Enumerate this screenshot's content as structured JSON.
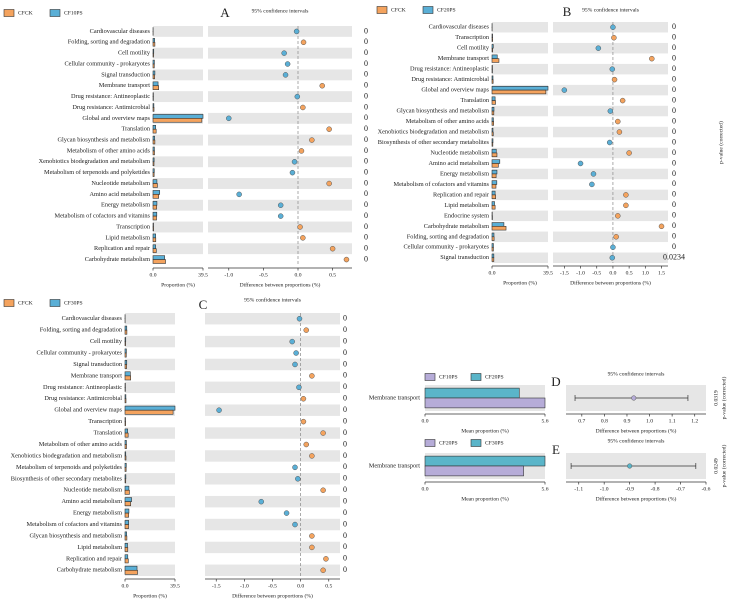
{
  "chart_data": [
    {
      "type": "extended_error_bar",
      "panel": "A",
      "ci_title": "95% confidence intervals",
      "categories": [
        "Cardiovascular diseases",
        "Folding, sorting and degradation",
        "Cell motility",
        "Cellular community - prokaryotes",
        "Signal transduction",
        "Membrane transport",
        "Drug resistance: Antineoplastic",
        "Drug resistance: Antimicrobial",
        "Global and overview maps",
        "Translation",
        "Glycan biosynthesis and metabolism",
        "Metabolism of other amino acids",
        "Xenobiotics biodegradation and metabolism",
        "Metabolism of terpenoids and polyketides",
        "Nucleotide metabolism",
        "Amino acid metabolism",
        "Energy metabolism",
        "Metabolism of cofactors and vitamins",
        "Transcription",
        "Lipid metabolism",
        "Replication and repair",
        "Carbohydrate metabolism"
      ],
      "series": [
        {
          "name": "CFCK",
          "color": "#f4a35e",
          "values": [
            0.1,
            1.5,
            0.5,
            1.0,
            1.3,
            4.5,
            0.3,
            0.8,
            38.6,
            2.5,
            1.5,
            1.2,
            0.8,
            0.9,
            3.5,
            4.5,
            2.9,
            2.8,
            0.5,
            2.2,
            2.6,
            9.9
          ]
        },
        {
          "name": "CF10PS",
          "color": "#5aafd6",
          "values": [
            0.1,
            1.3,
            0.6,
            1.1,
            1.5,
            4.0,
            0.3,
            0.7,
            39.5,
            2.1,
            1.3,
            1.1,
            0.9,
            1.0,
            3.1,
            5.3,
            3.1,
            3.0,
            0.4,
            2.1,
            2.1,
            9.2
          ]
        }
      ],
      "differences": [
        -0.02,
        0.08,
        -0.2,
        -0.15,
        -0.18,
        0.35,
        -0.01,
        0.07,
        -1.0,
        0.45,
        0.2,
        0.05,
        -0.05,
        -0.08,
        0.45,
        -0.85,
        -0.25,
        -0.25,
        0.03,
        0.07,
        0.5,
        0.7
      ],
      "p_values": [
        0,
        0,
        0,
        0,
        0,
        0,
        0,
        0,
        0,
        0,
        0,
        0,
        0,
        0,
        0,
        0,
        0,
        0,
        0,
        0,
        0,
        0
      ],
      "xlim": [
        0,
        39.5
      ],
      "xticks": [
        {
          "value": 0,
          "label": "0.0"
        },
        39.5
      ],
      "xlabel": "Proportion (%)",
      "diff_xlim": [
        -1.3,
        0.78
      ],
      "diff_xticks": [
        {
          "value": -1,
          "label": "-1.0"
        },
        -0.5,
        {
          "value": 0,
          "label": "0.0"
        },
        0.5
      ],
      "diff_xlabel": "Difference between proportions (%)"
    },
    {
      "type": "extended_error_bar",
      "panel": "B",
      "ci_title": "95% confidence intervals",
      "categories": [
        "Cardiovascular diseases",
        "Transcription",
        "Cell motility",
        "Membrane transport",
        "Drug resistance: Antineoplastic",
        "Drug resistance: Antimicrobial",
        "Global and overview maps",
        "Translation",
        "Glycan biosynthesis and metabolism",
        "Metabolism of other amino acids",
        "Xenobiotics biodegradation and metabolism",
        "Biosynthesis of other secondary metabolites",
        "Nucleotide metabolism",
        "Amino acid metabolism",
        "Energy metabolism",
        "Metabolism of cofactors and vitamins",
        "Replication and repair",
        "Lipid metabolism",
        "Endocrine system",
        "Carbohydrate metabolism",
        "Folding, sorting and degradation",
        "Cellular community - prokaryotes",
        "Signal transduction"
      ],
      "series": [
        {
          "name": "CFCK",
          "color": "#f4a35e",
          "values": [
            0.1,
            0.5,
            0.5,
            4.9,
            0.3,
            0.8,
            38.0,
            2.5,
            1.3,
            1.2,
            0.9,
            0.6,
            3.5,
            4.5,
            2.9,
            2.8,
            2.6,
            2.2,
            0.3,
            9.9,
            1.5,
            1.0,
            1.3
          ]
        },
        {
          "name": "CF20PS",
          "color": "#5aafd6",
          "values": [
            0.1,
            0.4,
            0.9,
            3.7,
            0.3,
            0.7,
            39.5,
            2.2,
            1.4,
            1.0,
            0.7,
            0.7,
            3.0,
            5.5,
            3.5,
            3.4,
            2.2,
            1.8,
            0.2,
            8.4,
            1.4,
            1.0,
            1.3
          ]
        }
      ],
      "differences": [
        0.0,
        0.03,
        -0.45,
        1.2,
        -0.02,
        0.05,
        -1.5,
        0.3,
        -0.08,
        0.15,
        0.2,
        -0.1,
        0.5,
        -1.0,
        -0.6,
        -0.65,
        0.4,
        0.4,
        0.15,
        1.5,
        0.1,
        0.0,
        -0.02
      ],
      "p_values": [
        0,
        0,
        0,
        0,
        0,
        0,
        0,
        0,
        0,
        0,
        0,
        0,
        0,
        0,
        0,
        0,
        0,
        0,
        0,
        0,
        0,
        0,
        0.0234
      ],
      "xlim": [
        0,
        39.5
      ],
      "xticks": [
        {
          "value": 0,
          "label": "0.0"
        },
        39.5
      ],
      "xlabel": "Proportion (%)",
      "diff_xlim": [
        -1.85,
        1.7
      ],
      "diff_xticks": [
        -1.5,
        {
          "value": -1,
          "label": "-1.0"
        },
        -0.5,
        {
          "value": 0,
          "label": "0.0"
        },
        0.5,
        {
          "value": 1,
          "label": "1.0"
        },
        1.5
      ],
      "diff_xlabel": "Difference between proportions (%)",
      "p_label": "p-value (corrected)"
    },
    {
      "type": "extended_error_bar",
      "panel": "C",
      "ci_title": "95% confidence intervals",
      "categories": [
        "Cardiovascular diseases",
        "Folding, sorting and degradation",
        "Cell motility",
        "Cellular community - prokaryotes",
        "Signal transduction",
        "Membrane transport",
        "Drug resistance: Antineoplastic",
        "Drug resistance: Antimicrobial",
        "Global and overview maps",
        "Transcription",
        "Translation",
        "Metabolism of other amino acids",
        "Xenobiotics biodegradation and metabolism",
        "Metabolism of terpenoids and polyketides",
        "Biosynthesis of other secondary metabolites",
        "Nucleotide metabolism",
        "Amino acid metabolism",
        "Energy metabolism",
        "Metabolism of cofactors and vitamins",
        "Glycan biosynthesis and metabolism",
        "Lipid metabolism",
        "Replication and repair",
        "Carbohydrate metabolism"
      ],
      "series": [
        {
          "name": "CFCK",
          "color": "#f4a35e",
          "values": [
            0.1,
            1.5,
            0.5,
            1.0,
            1.3,
            4.5,
            0.3,
            0.8,
            38.0,
            0.5,
            2.5,
            1.2,
            0.8,
            0.9,
            0.6,
            3.5,
            4.5,
            2.9,
            2.8,
            1.5,
            2.2,
            2.6,
            9.9
          ]
        },
        {
          "name": "CF30PS",
          "color": "#5aafd6",
          "values": [
            0.1,
            1.4,
            0.6,
            1.1,
            1.4,
            4.2,
            0.3,
            0.7,
            39.5,
            0.4,
            2.1,
            1.1,
            0.6,
            1.0,
            0.7,
            3.1,
            5.2,
            3.1,
            2.9,
            1.3,
            2.0,
            2.2,
            9.5
          ]
        }
      ],
      "differences": [
        -0.02,
        0.1,
        -0.15,
        -0.08,
        -0.1,
        0.2,
        -0.03,
        0.05,
        -1.45,
        0.05,
        0.4,
        0.1,
        0.2,
        -0.1,
        -0.05,
        0.4,
        -0.7,
        -0.25,
        -0.1,
        0.2,
        0.2,
        0.45,
        0.4
      ],
      "p_values": [
        0,
        0,
        0,
        0,
        0,
        0,
        0,
        0,
        0,
        0,
        0,
        0,
        0,
        0,
        0,
        0,
        0,
        0,
        0,
        0,
        0,
        0,
        0
      ],
      "xlim": [
        0,
        39.5
      ],
      "xticks": [
        {
          "value": 0,
          "label": "0.0"
        },
        39.5
      ],
      "xlabel": "Proportion (%)",
      "diff_xlim": [
        -1.7,
        0.7
      ],
      "diff_xticks": [
        -1.5,
        {
          "value": -1,
          "label": "-1.0"
        },
        -0.5,
        {
          "value": 0,
          "label": "0.0"
        },
        0.5
      ],
      "diff_xlabel": "Difference between proportions (%)"
    },
    {
      "type": "extended_error_bar",
      "panel": "D",
      "ci_title": "95% confidence intervals",
      "categories": [
        "Membrane transport"
      ],
      "series": [
        {
          "name": "CF10PS",
          "color": "#b6acd8",
          "values": [
            5.6
          ]
        },
        {
          "name": "CF20PS",
          "color": "#5ab5c9",
          "values": [
            4.4
          ]
        }
      ],
      "differences": [
        0.93
      ],
      "ci_low": [
        0.67
      ],
      "ci_high": [
        1.17
      ],
      "p_values": [
        0.0319
      ],
      "xlim": [
        0,
        5.6
      ],
      "xticks": [
        {
          "value": 0,
          "label": "0.0"
        },
        5.6
      ],
      "xlabel": "Mean proportion (%)",
      "diff_xlim": [
        0.63,
        1.25
      ],
      "diff_xticks": [
        0.7,
        0.8,
        0.9,
        {
          "value": 1,
          "label": "1.0"
        },
        1.1,
        1.2
      ],
      "diff_xlabel": "Difference between proportions (%)",
      "p_label": "p-value (corrected)"
    },
    {
      "type": "extended_error_bar",
      "panel": "E",
      "ci_title": "95% confidence intervals",
      "categories": [
        "Membrane transport"
      ],
      "series": [
        {
          "name": "CF20PS",
          "color": "#b6acd8",
          "values": [
            4.6
          ]
        },
        {
          "name": "CF30PS",
          "color": "#5ab5c9",
          "values": [
            5.6
          ]
        }
      ],
      "differences": [
        -0.9
      ],
      "ci_low": [
        -1.13
      ],
      "ci_high": [
        -0.64
      ],
      "p_values": [
        0.0249
      ],
      "xlim": [
        0,
        5.6
      ],
      "xticks": [
        {
          "value": 0,
          "label": "0.0"
        },
        5.6
      ],
      "xlabel": "Mean proportion (%)",
      "diff_xlim": [
        -1.15,
        -0.6
      ],
      "diff_xticks": [
        -1.1,
        {
          "value": -1,
          "label": "-1.0"
        },
        -0.9,
        -0.8,
        -0.7,
        -0.6
      ],
      "diff_xlabel": "Difference between proportions (%)",
      "p_label": "p-value (corrected)"
    }
  ]
}
